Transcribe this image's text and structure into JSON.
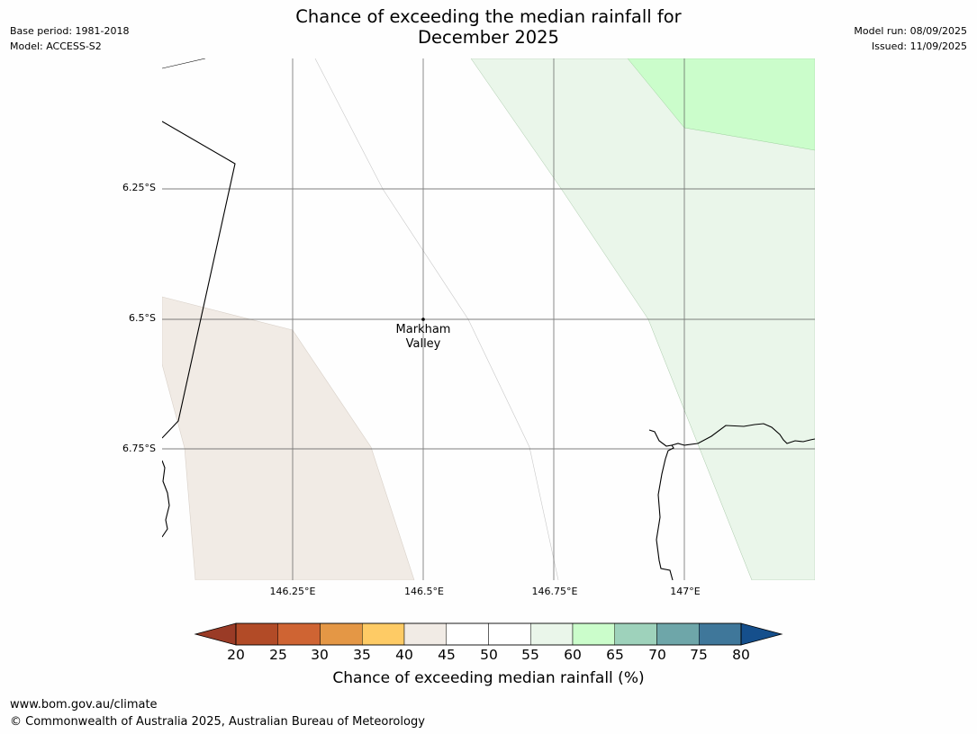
{
  "title": {
    "line1": "Chance of exceeding the median rainfall for",
    "line2": "December 2025"
  },
  "meta_left": {
    "base_period": "Base period: 1981-2018",
    "model": "Model: ACCESS-S2"
  },
  "meta_right": {
    "model_run": "Model run: 08/09/2025",
    "issued": "Issued: 11/09/2025"
  },
  "map": {
    "lat_labels": [
      "6.25°S",
      "6.5°S",
      "6.75°S"
    ],
    "lon_labels": [
      "146.25°E",
      "146.5°E",
      "146.75°E",
      "147°E"
    ],
    "place": {
      "line1": "Markham",
      "line2": "Valley"
    }
  },
  "colorbar": {
    "ticks": [
      "20",
      "25",
      "30",
      "35",
      "40",
      "45",
      "50",
      "55",
      "60",
      "65",
      "70",
      "75",
      "80"
    ],
    "label": "Chance of exceeding median rainfall (%)",
    "colors": {
      "under": "#9a3b26",
      "bins": [
        "#b24b27",
        "#cf6433",
        "#e49745",
        "#fecb65",
        "#f1ebe5",
        "#ffffff",
        "#ffffff",
        "#eaf6ea",
        "#cbfdcb",
        "#9ed2bb",
        "#6ea6a9",
        "#3f779a"
      ],
      "over": "#154f8c"
    }
  },
  "footer": {
    "website": "www.bom.gov.au/climate",
    "copyright": "© Commonwealth of Australia 2025, Australian Bureau of Meteorology"
  }
}
